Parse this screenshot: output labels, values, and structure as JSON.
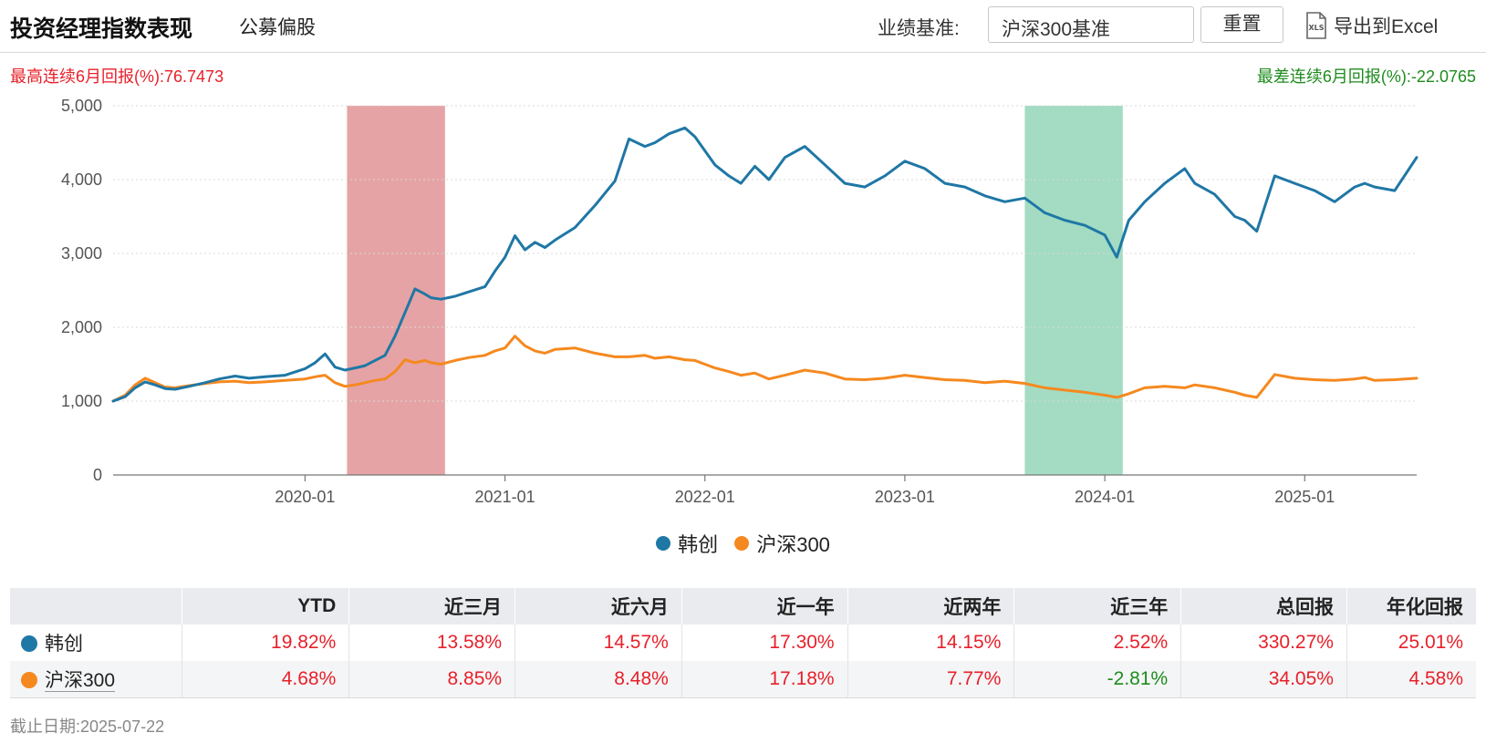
{
  "header": {
    "title": "投资经理指数表现",
    "subtitle": "公募偏股",
    "benchmark_label": "业绩基准:",
    "benchmark_value": "沪深300基准",
    "reset_label": "重置",
    "export_label": "导出到Excel",
    "export_icon": "xls-file-icon"
  },
  "summary": {
    "best_label": "最高连续6月回报(%):",
    "best_value": "76.7473",
    "worst_label": "最差连续6月回报(%):",
    "worst_value": "-22.0765"
  },
  "colors": {
    "fund": "#1f77a5",
    "benchmark": "#f5891f",
    "best_band": "#d66a6e",
    "worst_band": "#4fbb8c",
    "positive": "#e8202a",
    "negative": "#1e8c1e"
  },
  "chart_data": {
    "type": "line",
    "ylim": [
      0,
      5000
    ],
    "yticks": [
      0,
      1000,
      2000,
      3000,
      4000,
      5000
    ],
    "ytick_labels": [
      "0",
      "1,000",
      "2,000",
      "3,000",
      "4,000",
      "5,000"
    ],
    "xlim": [
      2019.04,
      2025.56
    ],
    "xticks": [
      2020.0,
      2021.0,
      2022.0,
      2023.0,
      2024.0,
      2025.0
    ],
    "xtick_labels": [
      "2020-01",
      "2021-01",
      "2022-01",
      "2023-01",
      "2024-01",
      "2025-01"
    ],
    "grid": true,
    "highlight_bands": [
      {
        "type": "best",
        "start": 2020.21,
        "end": 2020.7
      },
      {
        "type": "worst",
        "start": 2023.6,
        "end": 2024.09
      }
    ],
    "series": [
      {
        "name": "韩创",
        "x": [
          2019.04,
          2019.1,
          2019.15,
          2019.2,
          2019.25,
          2019.3,
          2019.35,
          2019.42,
          2019.5,
          2019.57,
          2019.65,
          2019.72,
          2019.8,
          2019.9,
          2020.0,
          2020.05,
          2020.1,
          2020.15,
          2020.2,
          2020.25,
          2020.3,
          2020.35,
          2020.4,
          2020.45,
          2020.5,
          2020.55,
          2020.6,
          2020.63,
          2020.68,
          2020.75,
          2020.82,
          2020.9,
          2020.95,
          2021.0,
          2021.05,
          2021.1,
          2021.15,
          2021.2,
          2021.25,
          2021.35,
          2021.45,
          2021.55,
          2021.62,
          2021.7,
          2021.75,
          2021.82,
          2021.9,
          2021.95,
          2022.05,
          2022.12,
          2022.18,
          2022.25,
          2022.32,
          2022.4,
          2022.5,
          2022.6,
          2022.7,
          2022.8,
          2022.9,
          2023.0,
          2023.1,
          2023.2,
          2023.3,
          2023.4,
          2023.5,
          2023.6,
          2023.7,
          2023.8,
          2023.9,
          2024.0,
          2024.06,
          2024.12,
          2024.2,
          2024.3,
          2024.4,
          2024.45,
          2024.55,
          2024.65,
          2024.7,
          2024.76,
          2024.85,
          2024.95,
          2025.05,
          2025.15,
          2025.25,
          2025.3,
          2025.35,
          2025.45,
          2025.56
        ],
        "y": [
          1000,
          1060,
          1180,
          1260,
          1220,
          1170,
          1160,
          1200,
          1250,
          1300,
          1340,
          1310,
          1330,
          1350,
          1440,
          1520,
          1640,
          1460,
          1420,
          1450,
          1480,
          1550,
          1620,
          1880,
          2200,
          2520,
          2450,
          2400,
          2380,
          2420,
          2480,
          2550,
          2760,
          2950,
          3240,
          3050,
          3150,
          3080,
          3180,
          3350,
          3650,
          3980,
          4550,
          4450,
          4500,
          4620,
          4700,
          4580,
          4200,
          4050,
          3950,
          4180,
          4000,
          4300,
          4450,
          4200,
          3950,
          3900,
          4050,
          4250,
          4150,
          3950,
          3900,
          3780,
          3700,
          3750,
          3550,
          3450,
          3380,
          3250,
          2950,
          3450,
          3700,
          3950,
          4150,
          3950,
          3800,
          3500,
          3450,
          3300,
          4050,
          3950,
          3850,
          3700,
          3900,
          3950,
          3900,
          3850,
          4300
        ]
      },
      {
        "name": "沪深300",
        "x": [
          2019.04,
          2019.1,
          2019.15,
          2019.2,
          2019.25,
          2019.3,
          2019.35,
          2019.42,
          2019.5,
          2019.57,
          2019.65,
          2019.72,
          2019.8,
          2019.9,
          2020.0,
          2020.05,
          2020.1,
          2020.15,
          2020.2,
          2020.25,
          2020.3,
          2020.35,
          2020.4,
          2020.45,
          2020.5,
          2020.55,
          2020.6,
          2020.63,
          2020.68,
          2020.75,
          2020.82,
          2020.9,
          2020.95,
          2021.0,
          2021.05,
          2021.1,
          2021.15,
          2021.2,
          2021.25,
          2021.35,
          2021.45,
          2021.55,
          2021.62,
          2021.7,
          2021.75,
          2021.82,
          2021.9,
          2021.95,
          2022.05,
          2022.12,
          2022.18,
          2022.25,
          2022.32,
          2022.4,
          2022.5,
          2022.6,
          2022.7,
          2022.8,
          2022.9,
          2023.0,
          2023.1,
          2023.2,
          2023.3,
          2023.4,
          2023.5,
          2023.6,
          2023.7,
          2023.8,
          2023.9,
          2024.0,
          2024.06,
          2024.12,
          2024.2,
          2024.3,
          2024.4,
          2024.45,
          2024.55,
          2024.65,
          2024.7,
          2024.76,
          2024.85,
          2024.95,
          2025.05,
          2025.15,
          2025.25,
          2025.3,
          2025.35,
          2025.45,
          2025.56
        ],
        "y": [
          1000,
          1080,
          1220,
          1310,
          1250,
          1190,
          1180,
          1210,
          1240,
          1260,
          1270,
          1250,
          1260,
          1280,
          1300,
          1330,
          1350,
          1250,
          1200,
          1220,
          1250,
          1280,
          1300,
          1400,
          1560,
          1520,
          1550,
          1520,
          1500,
          1550,
          1590,
          1620,
          1680,
          1720,
          1880,
          1750,
          1680,
          1650,
          1700,
          1720,
          1650,
          1600,
          1600,
          1620,
          1580,
          1600,
          1560,
          1550,
          1450,
          1400,
          1350,
          1380,
          1300,
          1350,
          1420,
          1380,
          1300,
          1290,
          1310,
          1350,
          1320,
          1290,
          1280,
          1250,
          1270,
          1240,
          1180,
          1150,
          1120,
          1080,
          1050,
          1100,
          1180,
          1200,
          1180,
          1220,
          1180,
          1120,
          1080,
          1050,
          1360,
          1310,
          1290,
          1280,
          1300,
          1320,
          1280,
          1290,
          1310
        ]
      }
    ]
  },
  "legend": {
    "items": [
      {
        "label": "韩创"
      },
      {
        "label": "沪深300"
      }
    ]
  },
  "table": {
    "columns": [
      "",
      "YTD",
      "近三月",
      "近六月",
      "近一年",
      "近两年",
      "近三年",
      "总回报",
      "年化回报"
    ],
    "rows": [
      {
        "name": "韩创",
        "values": [
          "19.82%",
          "13.58%",
          "14.57%",
          "17.30%",
          "14.15%",
          "2.52%",
          "330.27%",
          "25.01%"
        ]
      },
      {
        "name": "沪深300",
        "values": [
          "4.68%",
          "8.85%",
          "8.48%",
          "17.18%",
          "7.77%",
          "-2.81%",
          "34.05%",
          "4.58%"
        ]
      }
    ]
  },
  "footer": {
    "date_label": "截止日期:",
    "date_value": "2025-07-22"
  }
}
